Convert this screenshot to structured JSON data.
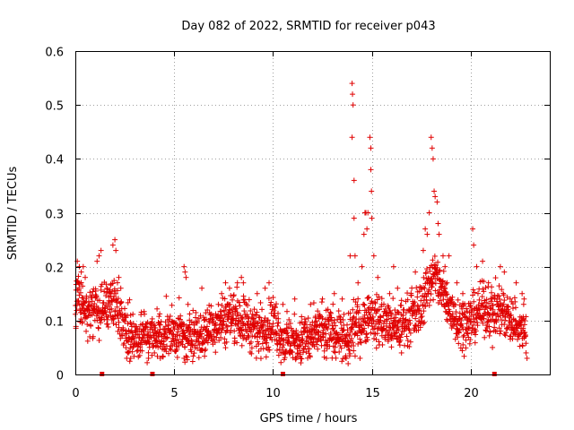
{
  "chart_data": {
    "type": "scatter",
    "title": "Day 082 of 2022, SRMTID for receiver p043",
    "xlabel": "GPS time / hours",
    "ylabel": "SRMTID / TECUs",
    "xlim": [
      0,
      24
    ],
    "ylim": [
      0,
      0.6
    ],
    "xticks": [
      0,
      5,
      10,
      15,
      20
    ],
    "yticks": [
      0,
      0.1,
      0.2,
      0.3,
      0.4,
      0.5,
      0.6
    ],
    "xtick_labels": [
      "0",
      "5",
      "10",
      "15",
      "20"
    ],
    "ytick_labels": [
      "0",
      "0.1",
      "0.2",
      "0.3",
      "0.4",
      "0.5",
      "0.6"
    ],
    "grid": true,
    "marker": "+",
    "color": "#e00000",
    "baseline": [
      [
        0.0,
        0.13
      ],
      [
        0.2,
        0.15
      ],
      [
        0.4,
        0.12
      ],
      [
        0.6,
        0.11
      ],
      [
        0.8,
        0.12
      ],
      [
        1.0,
        0.13
      ],
      [
        1.2,
        0.11
      ],
      [
        1.4,
        0.13
      ],
      [
        1.6,
        0.12
      ],
      [
        1.8,
        0.14
      ],
      [
        2.0,
        0.13
      ],
      [
        2.2,
        0.12
      ],
      [
        2.4,
        0.09
      ],
      [
        2.6,
        0.08
      ],
      [
        2.8,
        0.08
      ],
      [
        3.0,
        0.07
      ],
      [
        3.2,
        0.07
      ],
      [
        3.4,
        0.08
      ],
      [
        3.6,
        0.07
      ],
      [
        3.8,
        0.07
      ],
      [
        4.0,
        0.07
      ],
      [
        4.2,
        0.08
      ],
      [
        4.4,
        0.07
      ],
      [
        4.6,
        0.08
      ],
      [
        4.8,
        0.08
      ],
      [
        5.0,
        0.07
      ],
      [
        5.2,
        0.08
      ],
      [
        5.4,
        0.07
      ],
      [
        5.6,
        0.06
      ],
      [
        5.8,
        0.07
      ],
      [
        6.0,
        0.08
      ],
      [
        6.2,
        0.08
      ],
      [
        6.4,
        0.07
      ],
      [
        6.6,
        0.08
      ],
      [
        6.8,
        0.09
      ],
      [
        7.0,
        0.09
      ],
      [
        7.2,
        0.1
      ],
      [
        7.4,
        0.1
      ],
      [
        7.6,
        0.1
      ],
      [
        7.8,
        0.11
      ],
      [
        8.0,
        0.11
      ],
      [
        8.2,
        0.11
      ],
      [
        8.4,
        0.1
      ],
      [
        8.6,
        0.1
      ],
      [
        8.8,
        0.09
      ],
      [
        9.0,
        0.09
      ],
      [
        9.2,
        0.08
      ],
      [
        9.4,
        0.08
      ],
      [
        9.6,
        0.09
      ],
      [
        9.8,
        0.09
      ],
      [
        10.0,
        0.1
      ],
      [
        10.2,
        0.09
      ],
      [
        10.4,
        0.07
      ],
      [
        10.6,
        0.06
      ],
      [
        10.8,
        0.06
      ],
      [
        11.0,
        0.06
      ],
      [
        11.2,
        0.06
      ],
      [
        11.4,
        0.06
      ],
      [
        11.6,
        0.07
      ],
      [
        11.8,
        0.06
      ],
      [
        12.0,
        0.07
      ],
      [
        12.2,
        0.08
      ],
      [
        12.4,
        0.08
      ],
      [
        12.6,
        0.07
      ],
      [
        12.8,
        0.08
      ],
      [
        13.0,
        0.08
      ],
      [
        13.2,
        0.08
      ],
      [
        13.4,
        0.07
      ],
      [
        13.6,
        0.06
      ],
      [
        13.8,
        0.06
      ],
      [
        14.0,
        0.08
      ],
      [
        14.2,
        0.09
      ],
      [
        14.4,
        0.09
      ],
      [
        14.6,
        0.1
      ],
      [
        14.8,
        0.11
      ],
      [
        15.0,
        0.11
      ],
      [
        15.2,
        0.1
      ],
      [
        15.4,
        0.1
      ],
      [
        15.6,
        0.1
      ],
      [
        15.8,
        0.09
      ],
      [
        16.0,
        0.09
      ],
      [
        16.2,
        0.08
      ],
      [
        16.4,
        0.09
      ],
      [
        16.6,
        0.1
      ],
      [
        16.8,
        0.1
      ],
      [
        17.0,
        0.11
      ],
      [
        17.2,
        0.11
      ],
      [
        17.4,
        0.12
      ],
      [
        17.6,
        0.14
      ],
      [
        17.8,
        0.16
      ],
      [
        18.0,
        0.18
      ],
      [
        18.2,
        0.18
      ],
      [
        18.4,
        0.17
      ],
      [
        18.6,
        0.15
      ],
      [
        18.8,
        0.13
      ],
      [
        19.0,
        0.12
      ],
      [
        19.2,
        0.11
      ],
      [
        19.4,
        0.1
      ],
      [
        19.6,
        0.1
      ],
      [
        19.8,
        0.09
      ],
      [
        20.0,
        0.1
      ],
      [
        20.2,
        0.11
      ],
      [
        20.4,
        0.12
      ],
      [
        20.6,
        0.12
      ],
      [
        20.8,
        0.12
      ],
      [
        21.0,
        0.12
      ],
      [
        21.2,
        0.12
      ],
      [
        21.4,
        0.12
      ],
      [
        21.6,
        0.12
      ],
      [
        21.8,
        0.11
      ],
      [
        22.0,
        0.1
      ],
      [
        22.2,
        0.1
      ],
      [
        22.4,
        0.09
      ],
      [
        22.6,
        0.08
      ],
      [
        22.8,
        0.08
      ]
    ],
    "spikes": [
      [
        0.1,
        0.21
      ],
      [
        0.2,
        0.2
      ],
      [
        0.3,
        0.19
      ],
      [
        0.4,
        0.2
      ],
      [
        0.5,
        0.18
      ],
      [
        1.1,
        0.21
      ],
      [
        1.2,
        0.22
      ],
      [
        1.3,
        0.23
      ],
      [
        1.6,
        0.16
      ],
      [
        1.8,
        0.15
      ],
      [
        1.9,
        0.24
      ],
      [
        2.0,
        0.25
      ],
      [
        2.05,
        0.23
      ],
      [
        2.2,
        0.18
      ],
      [
        2.3,
        0.16
      ],
      [
        2.6,
        0.03
      ],
      [
        2.8,
        0.03
      ],
      [
        3.7,
        0.03
      ],
      [
        4.0,
        0.04
      ],
      [
        4.3,
        0.03
      ],
      [
        5.5,
        0.2
      ],
      [
        5.55,
        0.19
      ],
      [
        5.6,
        0.18
      ],
      [
        5.5,
        0.03
      ],
      [
        5.7,
        0.13
      ],
      [
        6.4,
        0.16
      ],
      [
        7.4,
        0.15
      ],
      [
        7.6,
        0.17
      ],
      [
        7.8,
        0.16
      ],
      [
        8.2,
        0.17
      ],
      [
        8.4,
        0.18
      ],
      [
        8.5,
        0.17
      ],
      [
        9.2,
        0.15
      ],
      [
        9.6,
        0.16
      ],
      [
        9.8,
        0.17
      ],
      [
        10.5,
        0.13
      ],
      [
        10.4,
        0.04
      ],
      [
        11.1,
        0.14
      ],
      [
        11.4,
        0.03
      ],
      [
        11.9,
        0.13
      ],
      [
        12.5,
        0.14
      ],
      [
        12.7,
        0.03
      ],
      [
        13.1,
        0.15
      ],
      [
        13.5,
        0.14
      ],
      [
        13.7,
        0.03
      ],
      [
        13.8,
        0.02
      ],
      [
        13.9,
        0.22
      ],
      [
        14.0,
        0.54
      ],
      [
        14.02,
        0.52
      ],
      [
        14.05,
        0.5
      ],
      [
        14.0,
        0.44
      ],
      [
        14.1,
        0.36
      ],
      [
        14.1,
        0.29
      ],
      [
        14.15,
        0.22
      ],
      [
        14.3,
        0.17
      ],
      [
        14.5,
        0.2
      ],
      [
        14.6,
        0.26
      ],
      [
        14.65,
        0.3
      ],
      [
        14.7,
        0.3
      ],
      [
        14.75,
        0.27
      ],
      [
        14.8,
        0.3
      ],
      [
        14.9,
        0.44
      ],
      [
        14.95,
        0.42
      ],
      [
        14.95,
        0.38
      ],
      [
        14.98,
        0.34
      ],
      [
        15.0,
        0.29
      ],
      [
        15.1,
        0.22
      ],
      [
        15.3,
        0.18
      ],
      [
        15.5,
        0.13
      ],
      [
        15.9,
        0.15
      ],
      [
        16.1,
        0.2
      ],
      [
        16.3,
        0.16
      ],
      [
        16.5,
        0.04
      ],
      [
        17.2,
        0.19
      ],
      [
        17.6,
        0.23
      ],
      [
        17.7,
        0.27
      ],
      [
        17.8,
        0.26
      ],
      [
        17.9,
        0.3
      ],
      [
        18.0,
        0.44
      ],
      [
        18.05,
        0.42
      ],
      [
        18.1,
        0.4
      ],
      [
        18.15,
        0.34
      ],
      [
        18.2,
        0.33
      ],
      [
        18.3,
        0.32
      ],
      [
        18.35,
        0.28
      ],
      [
        18.4,
        0.26
      ],
      [
        18.6,
        0.22
      ],
      [
        18.7,
        0.2
      ],
      [
        18.8,
        0.17
      ],
      [
        18.9,
        0.22
      ],
      [
        19.3,
        0.17
      ],
      [
        19.6,
        0.15
      ],
      [
        20.1,
        0.27
      ],
      [
        20.15,
        0.24
      ],
      [
        20.3,
        0.2
      ],
      [
        20.6,
        0.21
      ],
      [
        20.9,
        0.17
      ],
      [
        21.1,
        0.05
      ],
      [
        21.5,
        0.2
      ],
      [
        21.7,
        0.19
      ],
      [
        22.0,
        0.14
      ],
      [
        22.3,
        0.17
      ],
      [
        22.6,
        0.15
      ],
      [
        22.7,
        0.14
      ],
      [
        22.8,
        0.04
      ],
      [
        22.85,
        0.03
      ]
    ],
    "baseline_markers": [
      1.35,
      3.9,
      10.5,
      21.2
    ]
  }
}
